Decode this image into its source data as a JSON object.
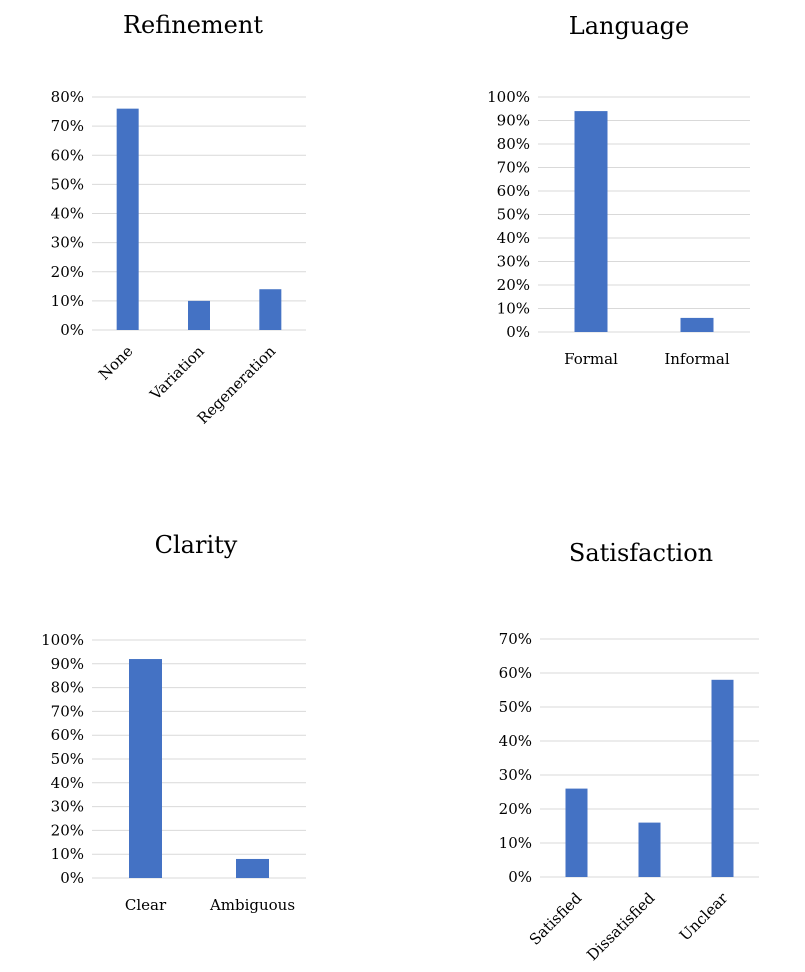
{
  "colors": {
    "bar": "#4472c4",
    "grid": "#d9d9d9",
    "background": "#ffffff"
  },
  "chart_data": [
    {
      "type": "bar",
      "title": "Refinement",
      "categories": [
        "None",
        "Variation",
        "Regeneration"
      ],
      "values": [
        76,
        10,
        14
      ],
      "ylim": [
        0,
        80
      ],
      "yticks": [
        "0%",
        "10%",
        "20%",
        "30%",
        "40%",
        "50%",
        "60%",
        "70%",
        "80%"
      ],
      "xlabel": "",
      "ylabel": "",
      "grid": true,
      "rotated_labels": true
    },
    {
      "type": "bar",
      "title": "Language",
      "categories": [
        "Formal",
        "Informal"
      ],
      "values": [
        94,
        6
      ],
      "ylim": [
        0,
        100
      ],
      "yticks": [
        "0%",
        "10%",
        "20%",
        "30%",
        "40%",
        "50%",
        "60%",
        "70%",
        "80%",
        "90%",
        "100%"
      ],
      "xlabel": "",
      "ylabel": "",
      "grid": true,
      "rotated_labels": false
    },
    {
      "type": "bar",
      "title": "Clarity",
      "categories": [
        "Clear",
        "Ambiguous"
      ],
      "values": [
        92,
        8
      ],
      "ylim": [
        0,
        100
      ],
      "yticks": [
        "0%",
        "10%",
        "20%",
        "30%",
        "40%",
        "50%",
        "60%",
        "70%",
        "80%",
        "90%",
        "100%"
      ],
      "xlabel": "",
      "ylabel": "",
      "grid": true,
      "rotated_labels": false
    },
    {
      "type": "bar",
      "title": "Satisfaction",
      "categories": [
        "Satisfied",
        "Dissatisfied",
        "Unclear"
      ],
      "values": [
        26,
        16,
        58
      ],
      "ylim": [
        0,
        70
      ],
      "yticks": [
        "0%",
        "10%",
        "20%",
        "30%",
        "40%",
        "50%",
        "60%",
        "70%"
      ],
      "xlabel": "",
      "ylabel": "",
      "grid": true,
      "rotated_labels": true
    }
  ]
}
